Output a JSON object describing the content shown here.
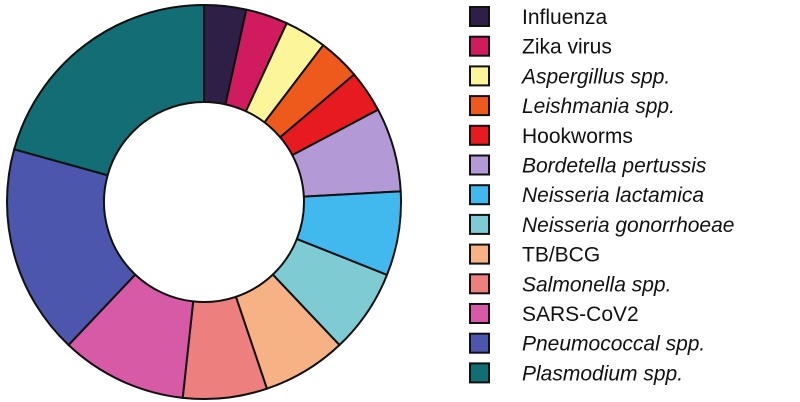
{
  "chart_data": {
    "type": "pie",
    "style": "donut",
    "title": "",
    "legend_position": "right",
    "slices": [
      {
        "label": "Influenza",
        "value": 1,
        "color": "#2e1f47",
        "italic": false
      },
      {
        "label": "Zika virus",
        "value": 1,
        "color": "#d01c5f",
        "italic": false
      },
      {
        "label": "Aspergillus spp.",
        "value": 1,
        "color": "#fdf59a",
        "italic": true
      },
      {
        "label": "Leishmania spp.",
        "value": 1,
        "color": "#ee5a1c",
        "italic": true
      },
      {
        "label": "Hookworms",
        "value": 1,
        "color": "#e61a1f",
        "italic": false
      },
      {
        "label": "Bordetella pertussis",
        "value": 2,
        "color": "#b39ad6",
        "italic": true
      },
      {
        "label": "Neisseria lactamica",
        "value": 2,
        "color": "#41b8ee",
        "italic": true
      },
      {
        "label": "Neisseria gonorrhoeae",
        "value": 2,
        "color": "#7ecbd3",
        "italic": true
      },
      {
        "label": "TB/BCG",
        "value": 2,
        "color": "#f6b185",
        "italic": false
      },
      {
        "label": "Salmonella spp.",
        "value": 2,
        "color": "#ed7f7f",
        "italic": true
      },
      {
        "label": "SARS-CoV2",
        "value": 3,
        "color": "#d65aa6",
        "italic": false
      },
      {
        "label": "Pneumococcal spp.",
        "value": 5,
        "color": "#4c56ad",
        "italic": true
      },
      {
        "label": "Plasmodium spp.",
        "value": 6,
        "color": "#136d75",
        "italic": true
      }
    ]
  }
}
